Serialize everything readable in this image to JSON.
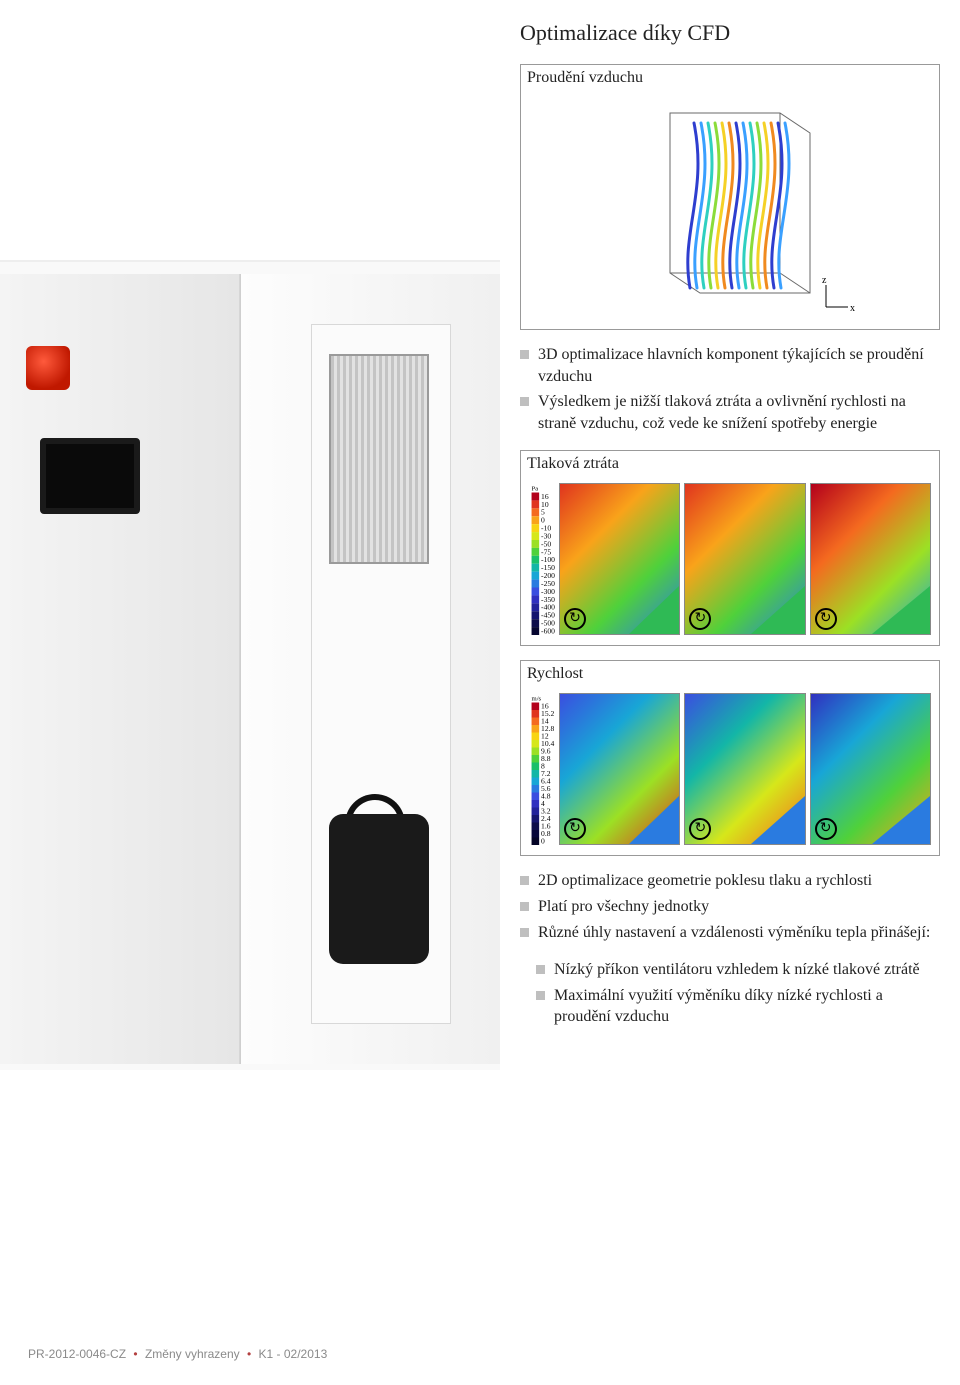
{
  "title": "Optimalizace díky CFD",
  "airflow_box": {
    "caption": "Proudění vzduchu"
  },
  "cfd3d": {
    "type": "3d-streamlines",
    "streamline_colors": [
      "#2e3ecf",
      "#3aa0ff",
      "#2fd0c0",
      "#8bdc3a",
      "#f5d126",
      "#f08a1f"
    ],
    "box_stroke": "#6a6a6a",
    "axis_labels": {
      "x": "x",
      "z": "z"
    },
    "background": "#ffffff"
  },
  "bullets_top": [
    "3D optimalizace hlavních komponent týkajících se proudění vzduchu",
    "Výsledkem je nižší tlaková ztráta a ovlivnění rychlosti na straně vzduchu, což vede ke snížení spotřeby energie"
  ],
  "pressure_box": {
    "caption": "Tlaková ztráta",
    "type": "cfd-contour",
    "legend": {
      "unit": "Pa",
      "values": [
        16,
        10,
        5,
        0,
        -10,
        -30,
        -50,
        -75,
        -100,
        -150,
        -200,
        -250,
        -300,
        -350,
        -400,
        -450,
        -500,
        -600
      ],
      "colors": [
        "#b3001b",
        "#e0341e",
        "#f46a1f",
        "#f9a31a",
        "#f8d413",
        "#d6e71a",
        "#9ce024",
        "#4fd13b",
        "#1ac06a",
        "#13b6a7",
        "#18a6d6",
        "#2a7be0",
        "#3a4ee0",
        "#3030c0",
        "#22229a",
        "#15156f",
        "#0c0c4a",
        "#050530"
      ],
      "fontsize": 8
    },
    "panes": 3,
    "inlet_triangle_color": "#2fba55",
    "pane_border": "#888888",
    "background": "#ffffff",
    "fan_icon_stroke": "#000000",
    "field_gradients": [
      [
        "#e0341e",
        "#f9a31a",
        "#4fd13b",
        "#2a7be0"
      ],
      [
        "#e0341e",
        "#f9a31a",
        "#4fd13b",
        "#2a7be0"
      ],
      [
        "#b3001b",
        "#f46a1f",
        "#9ce024",
        "#18a6d6"
      ]
    ]
  },
  "velocity_box": {
    "caption": "Rychlost",
    "type": "cfd-contour",
    "legend": {
      "unit": "m/s",
      "values": [
        16.0,
        15.2,
        14.0,
        12.8,
        12.0,
        10.4,
        9.6,
        8.8,
        8.0,
        7.2,
        6.4,
        5.6,
        4.8,
        4.0,
        3.2,
        2.4,
        1.6,
        0.8,
        0.0
      ],
      "colors": [
        "#b3001b",
        "#e0341e",
        "#f46a1f",
        "#f9a31a",
        "#f8d413",
        "#d6e71a",
        "#9ce024",
        "#4fd13b",
        "#1ac06a",
        "#13b6a7",
        "#18a6d6",
        "#2a7be0",
        "#3a4ee0",
        "#3030c0",
        "#22229a",
        "#15156f",
        "#0c0c4a",
        "#06063a",
        "#030326"
      ],
      "fontsize": 8
    },
    "panes": 3,
    "inlet_triangle_color": "#2a7be0",
    "pane_border": "#888888",
    "background": "#ffffff",
    "fan_icon_stroke": "#000000",
    "field_gradients": [
      [
        "#3a4ee0",
        "#18a6d6",
        "#9ce024",
        "#e0341e"
      ],
      [
        "#3a4ee0",
        "#13b6a7",
        "#d6e71a",
        "#f46a1f"
      ],
      [
        "#3030c0",
        "#18a6d6",
        "#4fd13b",
        "#f9a31a"
      ]
    ]
  },
  "bullets_bottom": [
    "2D optimalizace geometrie poklesu tlaku a rychlosti",
    "Platí pro všechny jednotky",
    "Různé úhly nastavení a vzdálenosti výměníku tepla přinášejí:"
  ],
  "bullets_bottom_sub": [
    "Nízký příkon ventilátoru vzhledem k nízké tlakové ztrátě",
    "Maximální využití výměníku díky nízké rychlosti a proudění vzduchu"
  ],
  "footer": {
    "doc_id": "PR-2012-0046-CZ",
    "note": "Změny vyhrazeny",
    "rev": "K1 - 02/2013",
    "separator": "•",
    "color": "#8a8a8a",
    "dot_color": "#b34040",
    "fontsize": 12
  },
  "figure_border_color": "#999999",
  "bullet_marker_color": "#bfbfbf",
  "body_text_color": "#222222",
  "title_fontsize": 22,
  "body_fontsize": 16
}
